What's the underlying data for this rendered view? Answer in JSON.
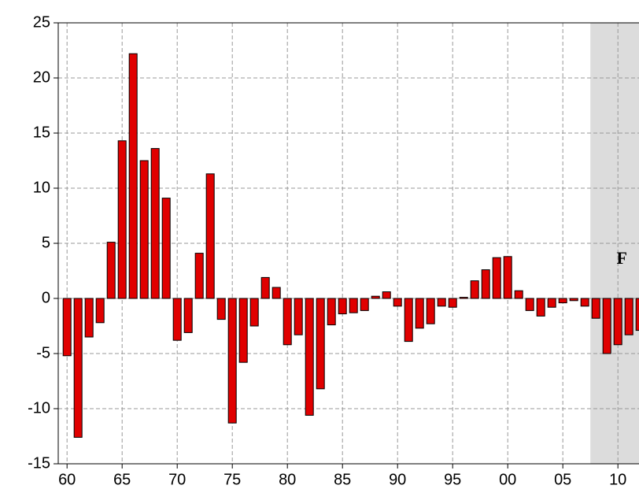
{
  "chart_data": {
    "type": "bar",
    "x": [
      1960,
      1961,
      1962,
      1963,
      1964,
      1965,
      1966,
      1967,
      1968,
      1969,
      1970,
      1971,
      1972,
      1973,
      1974,
      1975,
      1976,
      1977,
      1978,
      1979,
      1980,
      1981,
      1982,
      1983,
      1984,
      1985,
      1986,
      1987,
      1988,
      1989,
      1990,
      1991,
      1992,
      1993,
      1994,
      1995,
      1996,
      1997,
      1998,
      1999,
      2000,
      2001,
      2002,
      2003,
      2004,
      2005,
      2006,
      2007,
      2008,
      2009,
      2010,
      2011,
      2012
    ],
    "values": [
      -5.2,
      -12.6,
      -3.5,
      -2.2,
      5.1,
      14.3,
      22.2,
      12.5,
      13.6,
      9.1,
      -3.8,
      -3.1,
      4.1,
      11.3,
      -1.9,
      -11.3,
      -5.8,
      -2.5,
      1.9,
      1.0,
      -4.2,
      -3.3,
      -10.6,
      -8.2,
      -2.4,
      -1.4,
      -1.3,
      -1.1,
      0.2,
      0.6,
      -0.7,
      -3.9,
      -2.7,
      -2.3,
      -0.7,
      -0.8,
      0.1,
      1.6,
      2.6,
      3.7,
      3.8,
      0.7,
      -1.1,
      -1.6,
      -0.8,
      -0.4,
      -0.2,
      -0.7,
      -1.8,
      -5.0,
      -4.2,
      -3.3,
      -2.9
    ],
    "color": "#e00000",
    "xlim": [
      1959.2,
      2012.5
    ],
    "xticks": [
      {
        "value": 1960,
        "label": "60"
      },
      {
        "value": 1965,
        "label": "65"
      },
      {
        "value": 1970,
        "label": "70"
      },
      {
        "value": 1975,
        "label": "75"
      },
      {
        "value": 1980,
        "label": "80"
      },
      {
        "value": 1985,
        "label": "85"
      },
      {
        "value": 1990,
        "label": "90"
      },
      {
        "value": 1995,
        "label": "95"
      },
      {
        "value": 2000,
        "label": "00"
      },
      {
        "value": 2005,
        "label": "05"
      },
      {
        "value": 2010,
        "label": "10"
      }
    ],
    "ylim": [
      -15,
      25
    ],
    "yticks": [
      -15,
      -10,
      -5,
      0,
      5,
      10,
      15,
      20,
      25
    ],
    "grid": true,
    "shade": [
      2007.5,
      2012.5
    ],
    "annotation": "F"
  }
}
